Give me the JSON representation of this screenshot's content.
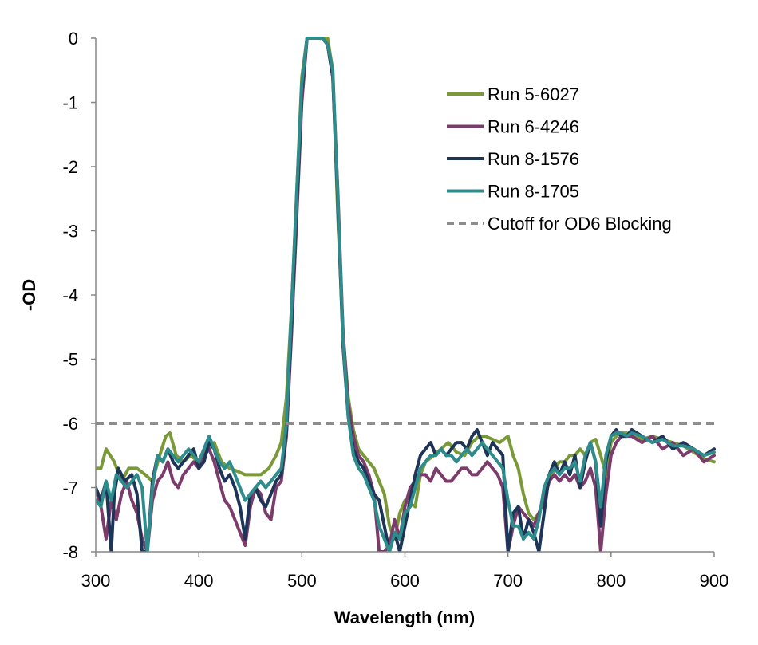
{
  "chart_data": {
    "type": "line",
    "title": "",
    "xlabel": "Wavelength (nm)",
    "ylabel": "-OD",
    "xlim": [
      300,
      900
    ],
    "ylim": [
      -8,
      0
    ],
    "xticks": [
      300,
      400,
      500,
      600,
      700,
      800,
      900
    ],
    "yticks": [
      0,
      -1,
      -2,
      -3,
      -4,
      -5,
      -6,
      -7,
      -8
    ],
    "grid": false,
    "legend_position": "right",
    "series": [
      {
        "name": "Run 5-6027",
        "color": "#7a9a3a",
        "style": "solid",
        "x": [
          300,
          305,
          310,
          318,
          325,
          332,
          340,
          348,
          355,
          362,
          368,
          372,
          378,
          385,
          392,
          400,
          408,
          415,
          422,
          430,
          438,
          445,
          452,
          460,
          468,
          475,
          480,
          485,
          490,
          495,
          500,
          505,
          510,
          515,
          520,
          525,
          530,
          535,
          540,
          545,
          550,
          555,
          560,
          565,
          570,
          575,
          580,
          585,
          590,
          595,
          600,
          605,
          610,
          615,
          620,
          628,
          635,
          642,
          650,
          658,
          665,
          672,
          678,
          685,
          692,
          700,
          705,
          710,
          715,
          720,
          725,
          730,
          735,
          740,
          745,
          750,
          755,
          760,
          765,
          770,
          775,
          780,
          785,
          790,
          795,
          800,
          805,
          810,
          815,
          820,
          830,
          840,
          850,
          860,
          870,
          880,
          890,
          900
        ],
        "y": [
          -6.7,
          -6.7,
          -6.4,
          -6.6,
          -6.9,
          -6.7,
          -6.7,
          -6.8,
          -6.9,
          -6.5,
          -6.2,
          -6.15,
          -6.5,
          -6.6,
          -6.5,
          -6.6,
          -6.4,
          -6.3,
          -6.6,
          -6.7,
          -6.75,
          -6.8,
          -6.8,
          -6.8,
          -6.7,
          -6.5,
          -6.3,
          -5.6,
          -4.2,
          -2.4,
          -0.6,
          0,
          0,
          0,
          0,
          0,
          -0.5,
          -2.8,
          -4.6,
          -5.6,
          -6.1,
          -6.4,
          -6.5,
          -6.6,
          -6.7,
          -6.9,
          -7.1,
          -7.6,
          -7.8,
          -7.4,
          -7.2,
          -7.25,
          -7.3,
          -6.8,
          -6.6,
          -6.5,
          -6.4,
          -6.3,
          -6.45,
          -6.5,
          -6.3,
          -6.2,
          -6.2,
          -6.25,
          -6.3,
          -6.2,
          -6.5,
          -6.7,
          -7.1,
          -7.4,
          -7.5,
          -7.4,
          -7.2,
          -6.9,
          -6.7,
          -6.6,
          -6.6,
          -6.5,
          -6.5,
          -6.4,
          -6.5,
          -6.3,
          -6.25,
          -6.5,
          -6.8,
          -6.3,
          -6.2,
          -6.15,
          -6.15,
          -6.2,
          -6.25,
          -6.2,
          -6.25,
          -6.3,
          -6.35,
          -6.45,
          -6.55,
          -6.6
        ]
      },
      {
        "name": "Run 6-4246",
        "color": "#7b3b6b",
        "style": "solid",
        "x": [
          300,
          305,
          310,
          315,
          320,
          325,
          330,
          335,
          340,
          345,
          350,
          355,
          360,
          365,
          370,
          375,
          380,
          385,
          390,
          395,
          400,
          405,
          410,
          415,
          420,
          425,
          430,
          435,
          440,
          445,
          450,
          455,
          460,
          465,
          470,
          475,
          480,
          485,
          490,
          495,
          500,
          505,
          510,
          515,
          520,
          525,
          530,
          535,
          540,
          545,
          550,
          555,
          560,
          565,
          570,
          575,
          580,
          585,
          590,
          595,
          600,
          605,
          610,
          615,
          620,
          625,
          630,
          635,
          640,
          645,
          650,
          655,
          660,
          665,
          670,
          675,
          680,
          685,
          690,
          695,
          700,
          705,
          710,
          715,
          720,
          725,
          730,
          735,
          740,
          745,
          750,
          755,
          760,
          765,
          770,
          775,
          780,
          785,
          790,
          795,
          800,
          805,
          810,
          815,
          820,
          830,
          840,
          850,
          860,
          870,
          880,
          890,
          900
        ],
        "y": [
          -7.0,
          -7.3,
          -7.8,
          -7.2,
          -7.5,
          -7.1,
          -6.9,
          -7.2,
          -7.4,
          -7.8,
          -8.0,
          -7.2,
          -6.9,
          -6.8,
          -6.6,
          -6.9,
          -7.0,
          -6.8,
          -6.7,
          -6.6,
          -6.7,
          -6.5,
          -6.4,
          -6.6,
          -6.9,
          -7.2,
          -7.3,
          -7.5,
          -7.7,
          -7.9,
          -7.3,
          -7.0,
          -7.1,
          -7.4,
          -7.5,
          -7.0,
          -6.9,
          -6.2,
          -4.6,
          -2.8,
          -1.0,
          0,
          0,
          0,
          0,
          -0.1,
          -0.6,
          -2.4,
          -4.6,
          -5.7,
          -6.2,
          -6.5,
          -6.6,
          -6.8,
          -7.1,
          -8.0,
          -8.0,
          -7.9,
          -7.5,
          -7.8,
          -7.3,
          -7.0,
          -6.9,
          -6.8,
          -6.8,
          -6.9,
          -6.7,
          -6.8,
          -6.9,
          -6.9,
          -6.8,
          -6.7,
          -6.7,
          -6.8,
          -6.8,
          -6.7,
          -6.6,
          -6.7,
          -6.8,
          -7.0,
          -8.0,
          -7.6,
          -7.3,
          -7.4,
          -7.5,
          -7.6,
          -7.4,
          -7.2,
          -6.9,
          -6.8,
          -6.9,
          -6.8,
          -6.9,
          -6.8,
          -7.0,
          -6.9,
          -6.7,
          -7.0,
          -8.0,
          -7.1,
          -6.5,
          -6.3,
          -6.2,
          -6.2,
          -6.2,
          -6.3,
          -6.2,
          -6.4,
          -6.3,
          -6.5,
          -6.4,
          -6.6,
          -6.5
        ]
      },
      {
        "name": "Run 8-1576",
        "color": "#1f3557",
        "style": "solid",
        "x": [
          300,
          305,
          310,
          315,
          318,
          322,
          328,
          335,
          340,
          345,
          350,
          355,
          360,
          365,
          370,
          375,
          380,
          385,
          390,
          395,
          400,
          405,
          410,
          415,
          420,
          425,
          430,
          435,
          440,
          445,
          450,
          455,
          460,
          465,
          470,
          475,
          480,
          485,
          490,
          495,
          500,
          505,
          510,
          515,
          520,
          525,
          530,
          535,
          540,
          545,
          550,
          555,
          560,
          565,
          570,
          575,
          580,
          585,
          590,
          595,
          600,
          605,
          610,
          615,
          620,
          625,
          630,
          635,
          640,
          645,
          650,
          655,
          660,
          665,
          670,
          675,
          680,
          685,
          690,
          695,
          700,
          705,
          710,
          715,
          720,
          725,
          730,
          735,
          740,
          745,
          750,
          755,
          760,
          765,
          770,
          775,
          780,
          785,
          790,
          795,
          800,
          805,
          810,
          815,
          820,
          830,
          840,
          850,
          860,
          870,
          880,
          890,
          900
        ],
        "y": [
          -7.0,
          -7.2,
          -6.9,
          -8.0,
          -7.1,
          -6.7,
          -6.9,
          -6.8,
          -7.1,
          -8.0,
          -8.0,
          -6.9,
          -6.5,
          -6.6,
          -6.4,
          -6.6,
          -6.7,
          -6.6,
          -6.5,
          -6.4,
          -6.7,
          -6.6,
          -6.3,
          -6.4,
          -6.7,
          -6.9,
          -6.8,
          -7.0,
          -7.3,
          -7.8,
          -7.1,
          -7.0,
          -7.2,
          -7.3,
          -7.1,
          -6.9,
          -6.8,
          -6.1,
          -4.4,
          -2.6,
          -0.8,
          0,
          0,
          0,
          0,
          -0.1,
          -0.6,
          -2.6,
          -4.8,
          -5.9,
          -6.4,
          -6.6,
          -6.7,
          -6.9,
          -7.1,
          -7.2,
          -7.6,
          -8.0,
          -7.7,
          -8.0,
          -7.6,
          -7.2,
          -6.8,
          -6.5,
          -6.4,
          -6.3,
          -6.5,
          -6.4,
          -6.5,
          -6.4,
          -6.3,
          -6.3,
          -6.4,
          -6.2,
          -6.1,
          -6.3,
          -6.5,
          -6.3,
          -6.4,
          -6.5,
          -8.0,
          -7.4,
          -7.3,
          -7.8,
          -7.5,
          -7.7,
          -8.0,
          -7.4,
          -6.8,
          -6.6,
          -6.8,
          -6.6,
          -6.8,
          -6.5,
          -7.0,
          -6.6,
          -6.3,
          -6.6,
          -7.6,
          -6.6,
          -6.2,
          -6.1,
          -6.2,
          -6.2,
          -6.1,
          -6.2,
          -6.3,
          -6.2,
          -6.4,
          -6.3,
          -6.4,
          -6.5,
          -6.4
        ]
      },
      {
        "name": "Run 8-1705",
        "color": "#2f8c8c",
        "style": "solid",
        "x": [
          300,
          305,
          310,
          315,
          320,
          325,
          330,
          335,
          340,
          345,
          350,
          355,
          360,
          365,
          370,
          375,
          380,
          385,
          390,
          395,
          400,
          405,
          410,
          415,
          420,
          425,
          430,
          435,
          440,
          445,
          450,
          455,
          460,
          465,
          470,
          475,
          480,
          485,
          490,
          495,
          500,
          505,
          510,
          515,
          520,
          525,
          530,
          535,
          540,
          545,
          550,
          555,
          560,
          565,
          570,
          575,
          580,
          585,
          590,
          595,
          600,
          605,
          610,
          615,
          620,
          625,
          630,
          635,
          640,
          645,
          650,
          655,
          660,
          665,
          670,
          675,
          680,
          685,
          690,
          695,
          700,
          705,
          710,
          715,
          720,
          725,
          730,
          735,
          740,
          745,
          750,
          755,
          760,
          765,
          770,
          775,
          780,
          785,
          790,
          795,
          800,
          805,
          810,
          815,
          820,
          830,
          840,
          850,
          860,
          870,
          880,
          890,
          900
        ],
        "y": [
          -7.2,
          -7.3,
          -6.9,
          -7.2,
          -6.8,
          -6.9,
          -7.0,
          -6.9,
          -6.8,
          -7.0,
          -8.0,
          -7.0,
          -6.5,
          -6.6,
          -6.4,
          -6.5,
          -6.6,
          -6.5,
          -6.4,
          -6.5,
          -6.6,
          -6.4,
          -6.2,
          -6.4,
          -6.6,
          -6.7,
          -6.6,
          -6.8,
          -7.0,
          -7.2,
          -7.1,
          -7.0,
          -6.9,
          -7.0,
          -6.9,
          -6.8,
          -6.7,
          -6.0,
          -4.2,
          -2.4,
          -0.7,
          0,
          0,
          0,
          0,
          -0.1,
          -0.5,
          -2.5,
          -4.7,
          -5.9,
          -6.5,
          -6.7,
          -6.8,
          -7.0,
          -7.2,
          -7.6,
          -7.8,
          -8.0,
          -7.7,
          -7.8,
          -7.4,
          -7.3,
          -7.0,
          -6.7,
          -6.6,
          -6.5,
          -6.5,
          -6.4,
          -6.5,
          -6.5,
          -6.6,
          -6.5,
          -6.4,
          -6.5,
          -6.4,
          -6.3,
          -6.4,
          -6.5,
          -6.6,
          -6.7,
          -7.2,
          -7.6,
          -7.6,
          -7.8,
          -7.7,
          -7.8,
          -7.5,
          -7.0,
          -6.8,
          -6.7,
          -6.8,
          -6.7,
          -6.7,
          -6.6,
          -6.9,
          -6.5,
          -6.3,
          -6.6,
          -7.3,
          -6.5,
          -6.2,
          -6.15,
          -6.15,
          -6.2,
          -6.15,
          -6.2,
          -6.3,
          -6.25,
          -6.35,
          -6.35,
          -6.4,
          -6.5,
          -6.45
        ]
      },
      {
        "name": "Cutoff for OD6 Blocking",
        "color": "#8c8c8c",
        "style": "dashed",
        "x": [
          300,
          900
        ],
        "y": [
          -6,
          -6
        ]
      }
    ]
  }
}
